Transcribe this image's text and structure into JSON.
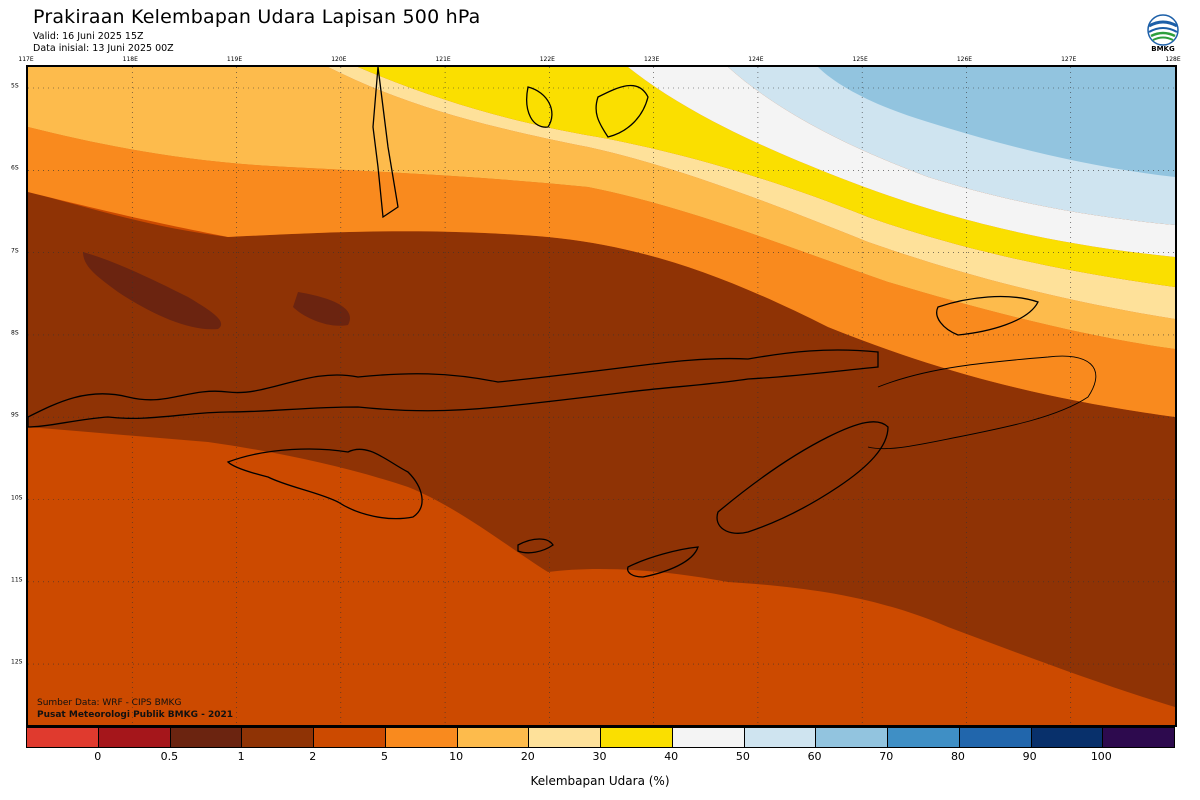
{
  "header": {
    "title": "Prakiraan Kelembapan Udara Lapisan 500 hPa",
    "valid": "Valid: 16 Juni 2025 15Z",
    "initial": "Data inisial: 13 Juni 2025 00Z",
    "logo_text": "BMKG"
  },
  "map": {
    "lon_labels": [
      "117E",
      "118E",
      "119E",
      "120E",
      "121E",
      "122E",
      "123E",
      "124E",
      "125E",
      "126E",
      "127E",
      "128E"
    ],
    "lat_labels": [
      "5S",
      "6S",
      "7S",
      "8S",
      "9S",
      "10S",
      "11S",
      "12S"
    ]
  },
  "credits": {
    "source": "Sumber Data: WRF - CIPS BMKG",
    "org": "Pusat Meteorologi Publik BMKG - 2021"
  },
  "colorbar": {
    "ticks": [
      "0",
      "0.5",
      "1",
      "2",
      "5",
      "10",
      "20",
      "30",
      "40",
      "50",
      "60",
      "70",
      "80",
      "90",
      "100"
    ],
    "colors": [
      "#e03a2e",
      "#a5161b",
      "#6b2410",
      "#8f3305",
      "#cc4a00",
      "#f98a1e",
      "#fdbb4c",
      "#fee19a",
      "#fadf00",
      "#f4f4f4",
      "#cfe4f0",
      "#92c4df",
      "#3f8fc5",
      "#2166ac",
      "#08306b",
      "#2d0a4e"
    ],
    "title": "Kelembapan Udara (%)"
  }
}
